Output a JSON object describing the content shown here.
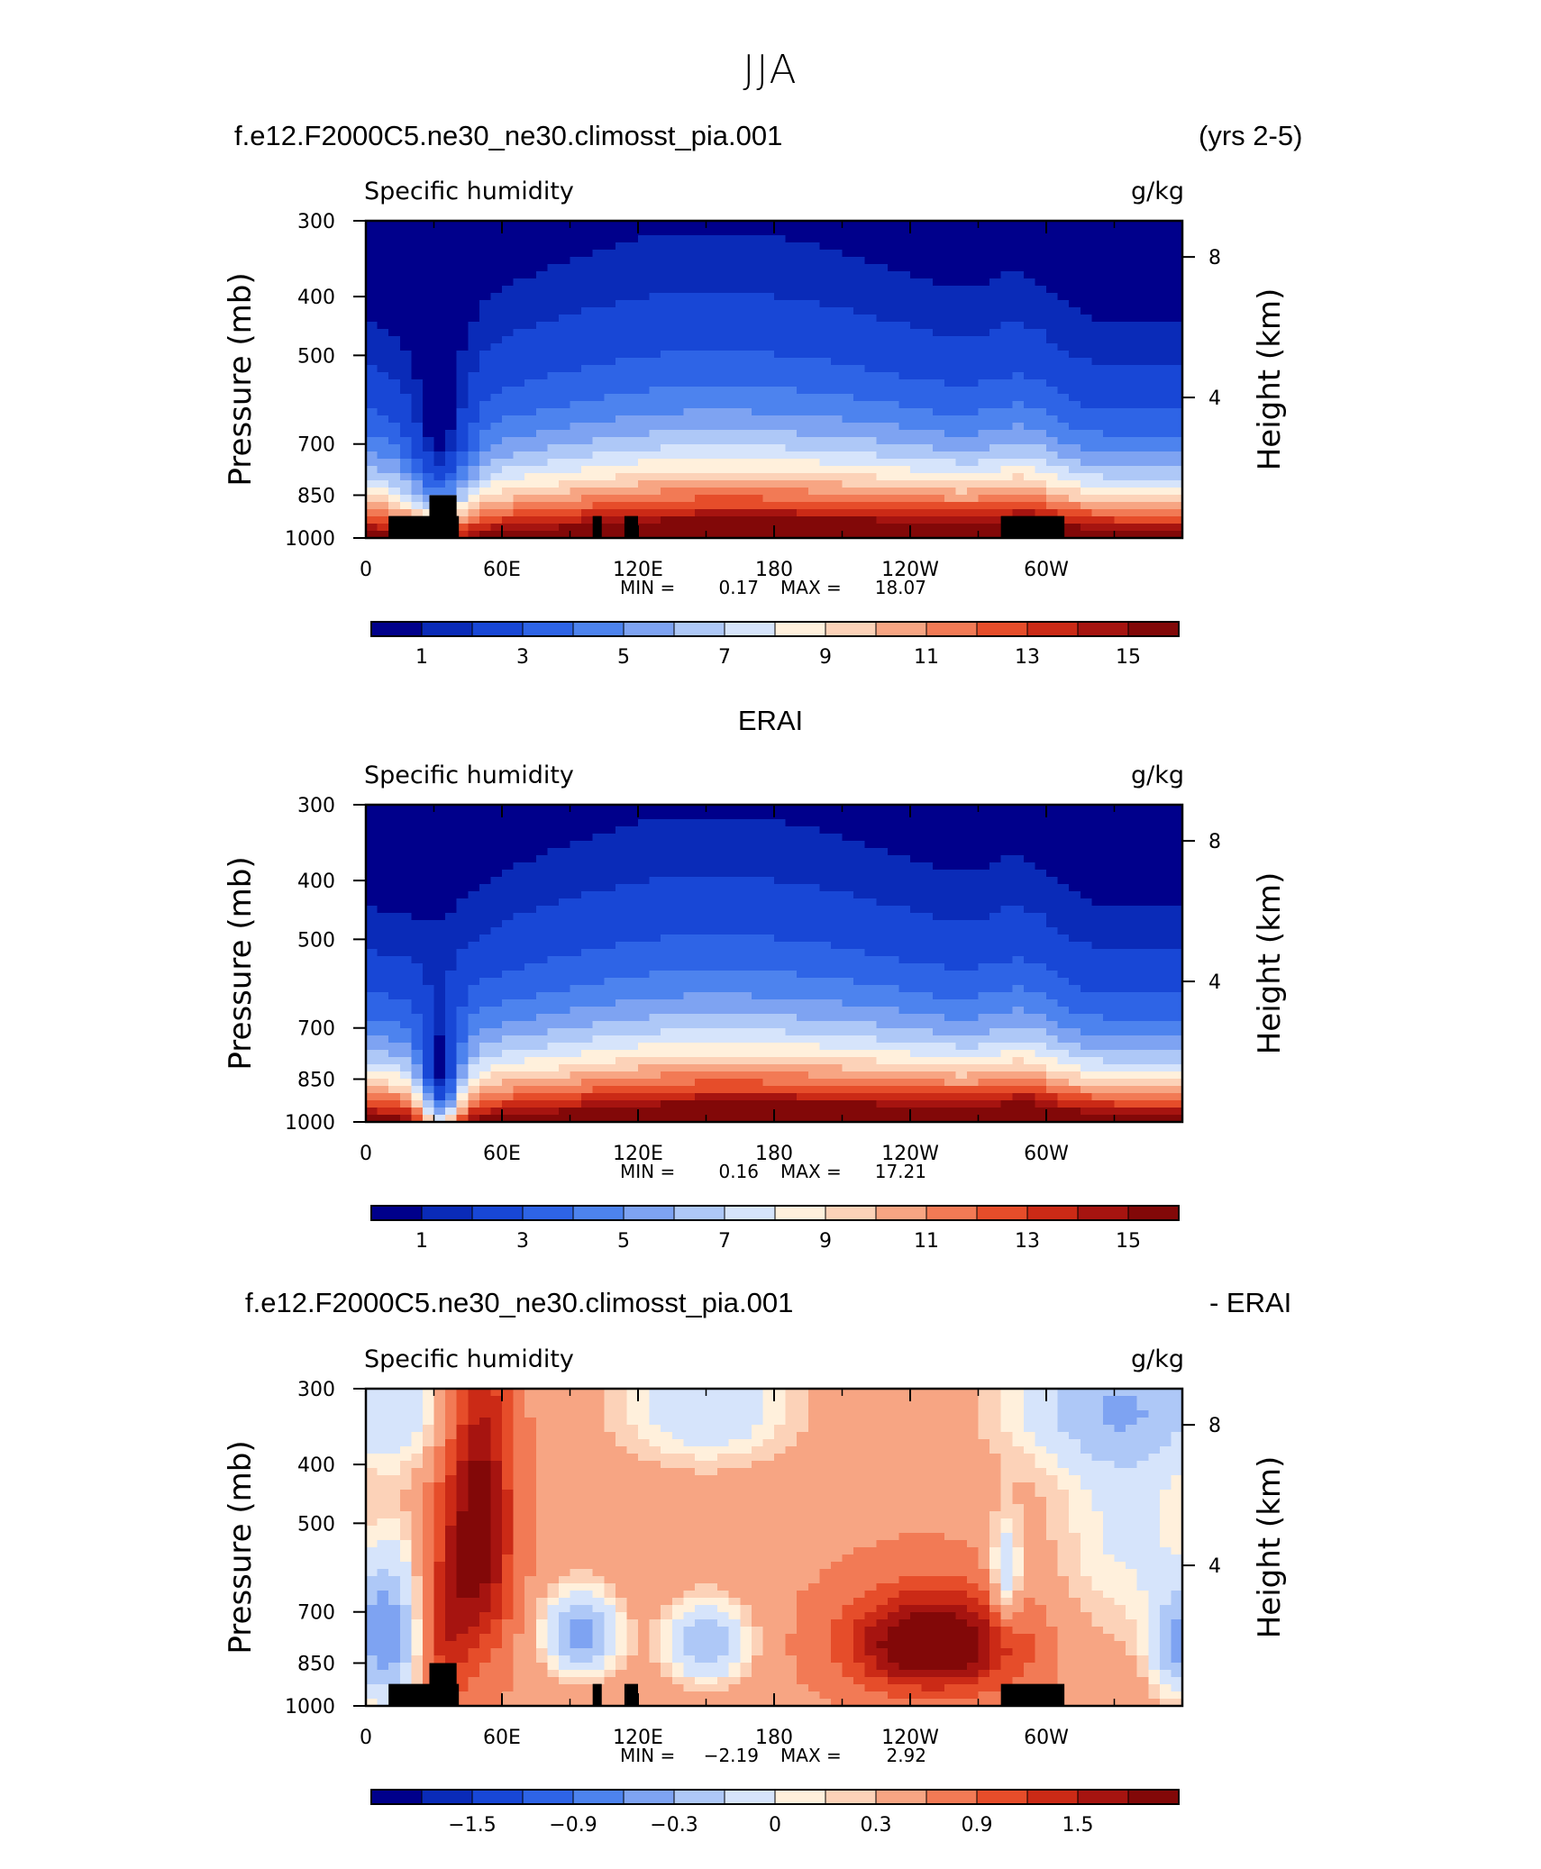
{
  "figure": {
    "season": "JJA",
    "headers": {
      "model_case": "f.e12.F2000C5.ne30_ne30.climosst_pia.001",
      "years": "(yrs 2-5)",
      "obs": "ERAI",
      "diff_case": "f.e12.F2000C5.ne30_ne30.climosst_pia.001",
      "diff_suffix": "- ERAI"
    }
  },
  "colors": {
    "colormap": [
      "#00008b",
      "#0a2bb8",
      "#1847d6",
      "#2e64e6",
      "#4d83ee",
      "#7ea3f2",
      "#aec8f7",
      "#d6e4fb",
      "#fff0dc",
      "#fcd2b8",
      "#f7a583",
      "#f27a55",
      "#e64d2a",
      "#cb2a16",
      "#a61410",
      "#820808"
    ]
  },
  "chart_data": [
    {
      "type": "heatmap",
      "name": "model",
      "title": "Specific humidity",
      "units": "g/kg",
      "xlabel": "",
      "ylabel": "Pressure (mb)",
      "ylabel_right": "Height (km)",
      "x_ticks": [
        "0",
        "60E",
        "120E",
        "180",
        "120W",
        "60W"
      ],
      "x_tick_values": [
        0,
        60,
        120,
        180,
        240,
        300
      ],
      "xlim": [
        0,
        360
      ],
      "y_ticks": [
        "300",
        "400",
        "500",
        "700",
        "850",
        "1000"
      ],
      "y_tick_values": [
        300,
        400,
        500,
        700,
        850,
        1000
      ],
      "ylim": [
        1000,
        300
      ],
      "right_ticks": [
        "8",
        "4"
      ],
      "right_tick_values": [
        8,
        4
      ],
      "min_label": "MIN =",
      "min_value": "0.17",
      "max_label": "MAX =",
      "max_value": "18.07",
      "colorbar_labels": [
        "1",
        "3",
        "5",
        "7",
        "9",
        "11",
        "13",
        "15"
      ],
      "colorbar_label_boxes": [
        1,
        3,
        5,
        7,
        9,
        11,
        13,
        15
      ],
      "levels": [
        0.5,
        1,
        2,
        3,
        4,
        5,
        6,
        7,
        8,
        9,
        10,
        11,
        12,
        13,
        14,
        15
      ],
      "kind": "abs",
      "topography": [
        [
          10,
          30,
          920
        ],
        [
          28,
          40,
          850
        ],
        [
          30,
          41,
          920
        ],
        [
          100,
          104,
          920
        ],
        [
          114,
          120,
          920
        ],
        [
          280,
          308,
          920
        ]
      ]
    },
    {
      "type": "heatmap",
      "name": "obs",
      "title": "Specific humidity",
      "units": "g/kg",
      "xlabel": "",
      "ylabel": "Pressure (mb)",
      "ylabel_right": "Height (km)",
      "x_ticks": [
        "0",
        "60E",
        "120E",
        "180",
        "120W",
        "60W"
      ],
      "x_tick_values": [
        0,
        60,
        120,
        180,
        240,
        300
      ],
      "xlim": [
        0,
        360
      ],
      "y_ticks": [
        "300",
        "400",
        "500",
        "700",
        "850",
        "1000"
      ],
      "y_tick_values": [
        300,
        400,
        500,
        700,
        850,
        1000
      ],
      "ylim": [
        1000,
        300
      ],
      "right_ticks": [
        "8",
        "4"
      ],
      "right_tick_values": [
        8,
        4
      ],
      "min_label": "MIN =",
      "min_value": "0.16",
      "max_label": "MAX =",
      "max_value": "17.21",
      "colorbar_labels": [
        "1",
        "3",
        "5",
        "7",
        "9",
        "11",
        "13",
        "15"
      ],
      "colorbar_label_boxes": [
        1,
        3,
        5,
        7,
        9,
        11,
        13,
        15
      ],
      "levels": [
        0.5,
        1,
        2,
        3,
        4,
        5,
        6,
        7,
        8,
        9,
        10,
        11,
        12,
        13,
        14,
        15
      ],
      "kind": "abs",
      "topography": []
    },
    {
      "type": "heatmap",
      "name": "difference",
      "title": "Specific humidity",
      "units": "g/kg",
      "xlabel": "",
      "ylabel": "Pressure (mb)",
      "ylabel_right": "Height (km)",
      "x_ticks": [
        "0",
        "60E",
        "120E",
        "180",
        "120W",
        "60W"
      ],
      "x_tick_values": [
        0,
        60,
        120,
        180,
        240,
        300
      ],
      "xlim": [
        0,
        360
      ],
      "y_ticks": [
        "300",
        "400",
        "500",
        "700",
        "850",
        "1000"
      ],
      "y_tick_values": [
        300,
        400,
        500,
        700,
        850,
        1000
      ],
      "ylim": [
        1000,
        300
      ],
      "right_ticks": [
        "8",
        "4"
      ],
      "right_tick_values": [
        8,
        4
      ],
      "min_label": "MIN =",
      "min_value": "−2.19",
      "max_label": "MAX =",
      "max_value": "2.92",
      "colorbar_labels": [
        "−1.5",
        "−0.9",
        "−0.3",
        "0",
        "0.3",
        "0.9",
        "1.5"
      ],
      "colorbar_label_boxes": [
        2,
        4,
        6,
        8,
        10,
        12,
        14
      ],
      "levels": [
        -2.1,
        -1.8,
        -1.5,
        -1.2,
        -0.9,
        -0.6,
        -0.3,
        0,
        0.15,
        0.3,
        0.6,
        0.9,
        1.2,
        1.5,
        1.8,
        2.1
      ],
      "kind": "diff",
      "topography": [
        [
          10,
          30,
          920
        ],
        [
          28,
          40,
          850
        ],
        [
          30,
          41,
          920
        ],
        [
          100,
          104,
          920
        ],
        [
          114,
          120,
          920
        ],
        [
          280,
          308,
          920
        ]
      ]
    }
  ]
}
